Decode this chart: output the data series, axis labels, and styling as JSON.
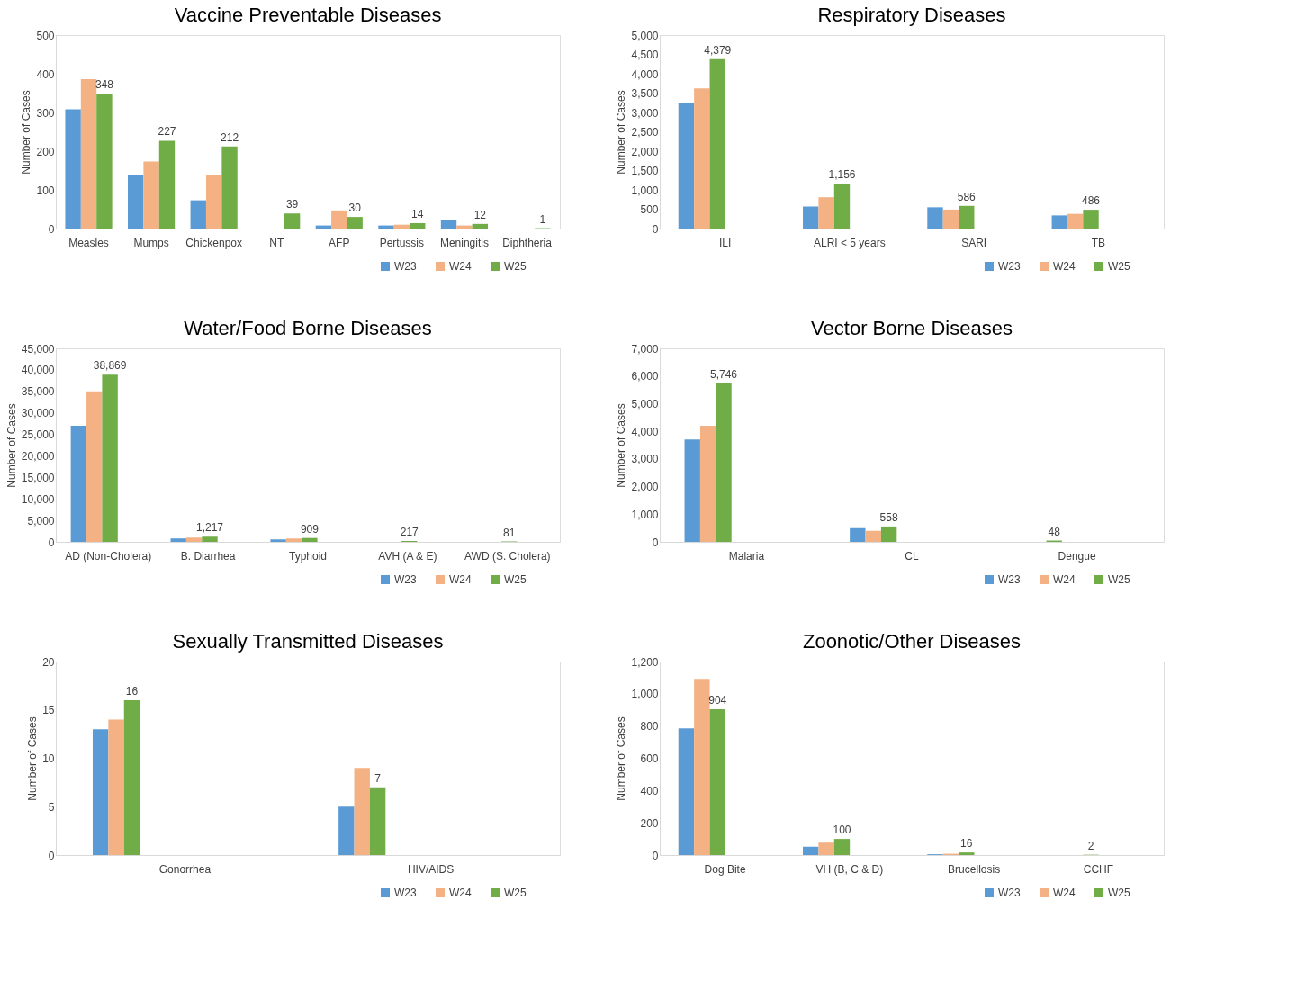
{
  "chart_data": [
    {
      "type": "bar",
      "title": "Vaccine Preventable Diseases",
      "ylabel": "Number of Cases",
      "categories": [
        "Measles",
        "Mumps",
        "Chickenpox",
        "NT",
        "AFP",
        "Pertussis",
        "Meningitis",
        "Diphtheria"
      ],
      "series": [
        {
          "name": "W23",
          "color": "#5b9bd5",
          "values": [
            308,
            137,
            73,
            0,
            8,
            8,
            22,
            0
          ]
        },
        {
          "name": "W24",
          "color": "#f4b183",
          "values": [
            386,
            173,
            139,
            0,
            47,
            10,
            8,
            0
          ]
        },
        {
          "name": "W25",
          "color": "#70ad47",
          "values": [
            348,
            227,
            212,
            39,
            30,
            14,
            12,
            1
          ],
          "value_labels": [
            "348",
            "227",
            "212",
            "39",
            "30",
            "14",
            "12",
            "1"
          ]
        }
      ],
      "ylim": [
        0,
        500
      ],
      "yticks": [
        0,
        100,
        200,
        300,
        400,
        500
      ],
      "grid": false,
      "legend": "bottom right"
    },
    {
      "type": "bar",
      "title": "Respiratory Diseases",
      "ylabel": "Number of Cases",
      "categories": [
        "ILI",
        "ALRI < 5 years",
        "SARI",
        "TB"
      ],
      "series": [
        {
          "name": "W23",
          "color": "#5b9bd5",
          "values": [
            3240,
            570,
            550,
            340
          ]
        },
        {
          "name": "W24",
          "color": "#f4b183",
          "values": [
            3620,
            810,
            490,
            380
          ]
        },
        {
          "name": "W25",
          "color": "#70ad47",
          "values": [
            4379,
            1156,
            586,
            486
          ],
          "value_labels": [
            "4,379",
            "1,156",
            "586",
            "486"
          ]
        }
      ],
      "ylim": [
        0,
        5000
      ],
      "yticks": [
        0,
        500,
        {
          "value": 1000,
          "label": "1,000"
        },
        {
          "value": 1500,
          "label": "1,500"
        },
        {
          "value": 2000,
          "label": "2,000"
        },
        {
          "value": 2500,
          "label": "2,500"
        },
        {
          "value": 3000,
          "label": "3,000"
        },
        {
          "value": 3500,
          "label": "3,500"
        },
        {
          "value": 4000,
          "label": "4,000"
        },
        {
          "value": 4500,
          "label": "4,500"
        },
        {
          "value": 5000,
          "label": "5,000"
        }
      ],
      "grid": false,
      "legend": "bottom right"
    },
    {
      "type": "bar",
      "title": "Water/Food Borne Diseases",
      "ylabel": "Number of Cases",
      "categories": [
        "AD (Non-Cholera)",
        "B. Diarrhea",
        "Typhoid",
        "AVH (A & E)",
        "AWD (S. Cholera)"
      ],
      "series": [
        {
          "name": "W23",
          "color": "#5b9bd5",
          "values": [
            27000,
            800,
            600,
            null,
            null
          ]
        },
        {
          "name": "W24",
          "color": "#f4b183",
          "values": [
            35000,
            1000,
            800,
            null,
            null
          ]
        },
        {
          "name": "W25",
          "color": "#70ad47",
          "values": [
            38869,
            1217,
            909,
            217,
            81
          ],
          "value_labels": [
            "38,869",
            "1,217",
            "909",
            "217",
            "81"
          ]
        }
      ],
      "ylim": [
        0,
        45000
      ],
      "yticks": [
        0,
        {
          "value": 5000,
          "label": "5,000"
        },
        {
          "value": 10000,
          "label": "10,000"
        },
        {
          "value": 15000,
          "label": "15,000"
        },
        {
          "value": 20000,
          "label": "20,000"
        },
        {
          "value": 25000,
          "label": "25,000"
        },
        {
          "value": 30000,
          "label": "30,000"
        },
        {
          "value": 35000,
          "label": "35,000"
        },
        {
          "value": 40000,
          "label": "40,000"
        },
        {
          "value": 45000,
          "label": "45,000"
        }
      ],
      "grid": false,
      "legend": "bottom right"
    },
    {
      "type": "bar",
      "title": "Vector Borne Diseases",
      "ylabel": "Number of Cases",
      "categories": [
        "Malaria",
        "CL",
        "Dengue"
      ],
      "series": [
        {
          "name": "W23",
          "color": "#5b9bd5",
          "values": [
            3700,
            500,
            null
          ]
        },
        {
          "name": "W24",
          "color": "#f4b183",
          "values": [
            4200,
            400,
            null
          ]
        },
        {
          "name": "W25",
          "color": "#70ad47",
          "values": [
            5746,
            558,
            48
          ],
          "value_labels": [
            "5,746",
            "558",
            "48"
          ]
        }
      ],
      "ylim": [
        0,
        7000
      ],
      "yticks": [
        0,
        {
          "value": 1000,
          "label": "1,000"
        },
        {
          "value": 2000,
          "label": "2,000"
        },
        {
          "value": 3000,
          "label": "3,000"
        },
        {
          "value": 4000,
          "label": "4,000"
        },
        {
          "value": 5000,
          "label": "5,000"
        },
        {
          "value": 6000,
          "label": "6,000"
        },
        {
          "value": 7000,
          "label": "7,000"
        }
      ],
      "grid": false,
      "legend": "bottom right"
    },
    {
      "type": "bar",
      "title": "Sexually Transmitted Diseases",
      "ylabel": "Number of Cases",
      "categories": [
        "Gonorrhea",
        "HIV/AIDS"
      ],
      "series": [
        {
          "name": "W23",
          "color": "#5b9bd5",
          "values": [
            13,
            5
          ]
        },
        {
          "name": "W24",
          "color": "#f4b183",
          "values": [
            14,
            9
          ]
        },
        {
          "name": "W25",
          "color": "#70ad47",
          "values": [
            16,
            7
          ],
          "value_labels": [
            "16",
            "7"
          ]
        }
      ],
      "ylim": [
        0,
        20
      ],
      "yticks": [
        0,
        5,
        10,
        15,
        20
      ],
      "grid": false,
      "legend": "bottom right"
    },
    {
      "type": "bar",
      "title": "Zoonotic/Other Diseases",
      "ylabel": "Number of Cases",
      "categories": [
        "Dog Bite",
        "VH (B, C & D)",
        "Brucellosis",
        "CCHF"
      ],
      "series": [
        {
          "name": "W23",
          "color": "#5b9bd5",
          "values": [
            785,
            51,
            5,
            null
          ]
        },
        {
          "name": "W24",
          "color": "#f4b183",
          "values": [
            1092,
            77,
            8,
            null
          ]
        },
        {
          "name": "W25",
          "color": "#70ad47",
          "values": [
            904,
            100,
            16,
            2
          ],
          "value_labels": [
            "904",
            "100",
            "16",
            "2"
          ]
        }
      ],
      "ylim": [
        0,
        1200
      ],
      "yticks": [
        0,
        200,
        400,
        600,
        800,
        {
          "value": 1000,
          "label": "1,000"
        },
        {
          "value": 1200,
          "label": "1,200"
        }
      ],
      "grid": false,
      "legend": "bottom right"
    }
  ]
}
